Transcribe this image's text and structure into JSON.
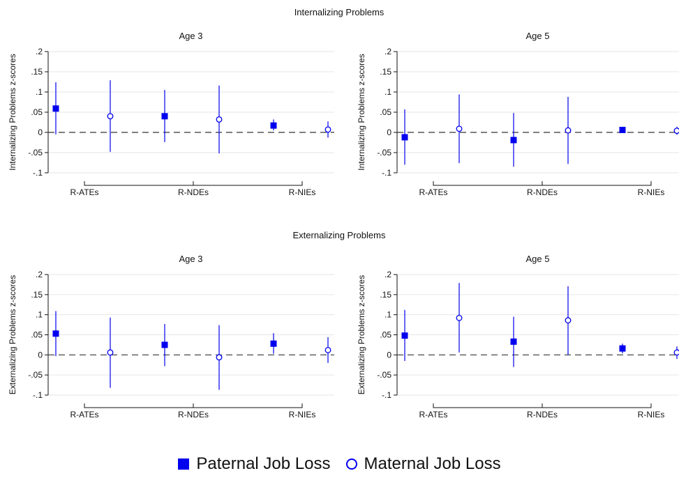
{
  "chart_data": [
    {
      "type": "scatter",
      "group_title": "Internalizing Problems",
      "title": "Age 3",
      "ylabel": "Internalizing Problems z-scores",
      "ylim": [
        -0.1,
        0.2
      ],
      "yticks": [
        ".2",
        ".15",
        ".1",
        ".05",
        "0",
        "-.05",
        "-.1"
      ],
      "categories": [
        "R-ATEs",
        "R-NDEs",
        "R-NIEs"
      ],
      "series": [
        {
          "name": "Paternal Job Loss",
          "marker": "filled-square",
          "values": [
            0.059,
            0.04,
            0.017
          ],
          "ci_low": [
            -0.005,
            -0.024,
            0.005
          ],
          "ci_high": [
            0.124,
            0.105,
            0.032
          ]
        },
        {
          "name": "Maternal Job Loss",
          "marker": "hollow-circle",
          "values": [
            0.04,
            0.032,
            0.007
          ],
          "ci_low": [
            -0.048,
            -0.052,
            -0.013
          ],
          "ci_high": [
            0.129,
            0.116,
            0.027
          ]
        }
      ]
    },
    {
      "type": "scatter",
      "group_title": "Internalizing Problems",
      "title": "Age 5",
      "ylabel": "Internalizing Problems z-scores",
      "ylim": [
        -0.1,
        0.2
      ],
      "yticks": [
        ".2",
        ".15",
        ".1",
        ".05",
        "0",
        "-.05",
        "-.1"
      ],
      "categories": [
        "R-ATEs",
        "R-NDEs",
        "R-NIEs"
      ],
      "series": [
        {
          "name": "Paternal Job Loss",
          "marker": "filled-square",
          "values": [
            -0.012,
            -0.019,
            0.006
          ],
          "ci_low": [
            -0.08,
            -0.085,
            0.0
          ],
          "ci_high": [
            0.057,
            0.048,
            0.012
          ]
        },
        {
          "name": "Maternal Job Loss",
          "marker": "hollow-circle",
          "values": [
            0.009,
            0.005,
            0.004
          ],
          "ci_low": [
            -0.076,
            -0.078,
            -0.006
          ],
          "ci_high": [
            0.094,
            0.088,
            0.014
          ]
        }
      ]
    },
    {
      "type": "scatter",
      "group_title": "Externalizing Problems",
      "title": "Age 3",
      "ylabel": "Externalizing Problems z-scores",
      "ylim": [
        -0.1,
        0.2
      ],
      "yticks": [
        ".2",
        ".15",
        ".1",
        ".05",
        "0",
        "-.05",
        "-.1"
      ],
      "categories": [
        "R-ATEs",
        "R-NDEs",
        "R-NIEs"
      ],
      "series": [
        {
          "name": "Paternal Job Loss",
          "marker": "filled-square",
          "values": [
            0.053,
            0.025,
            0.028
          ],
          "ci_low": [
            -0.003,
            -0.028,
            0.003
          ],
          "ci_high": [
            0.109,
            0.077,
            0.054
          ]
        },
        {
          "name": "Maternal Job Loss",
          "marker": "hollow-circle",
          "values": [
            0.006,
            -0.006,
            0.012
          ],
          "ci_low": [
            -0.082,
            -0.087,
            -0.02
          ],
          "ci_high": [
            0.093,
            0.074,
            0.044
          ]
        }
      ]
    },
    {
      "type": "scatter",
      "group_title": "Externalizing Problems",
      "title": "Age 5",
      "ylabel": "Externalizing Problems z-scores",
      "ylim": [
        -0.1,
        0.2
      ],
      "yticks": [
        ".2",
        ".15",
        ".1",
        ".05",
        "0",
        "-.05",
        "-.1"
      ],
      "categories": [
        "R-ATEs",
        "R-NDEs",
        "R-NIEs"
      ],
      "series": [
        {
          "name": "Paternal Job Loss",
          "marker": "filled-square",
          "values": [
            0.048,
            0.033,
            0.016
          ],
          "ci_low": [
            -0.015,
            -0.03,
            0.004
          ],
          "ci_high": [
            0.112,
            0.095,
            0.028
          ]
        },
        {
          "name": "Maternal Job Loss",
          "marker": "hollow-circle",
          "values": [
            0.092,
            0.086,
            0.006
          ],
          "ci_low": [
            0.006,
            0.0,
            -0.01
          ],
          "ci_high": [
            0.179,
            0.171,
            0.021
          ]
        }
      ]
    }
  ],
  "legend": {
    "paternal_label": "Paternal Job Loss",
    "maternal_label": "Maternal Job Loss"
  },
  "colors": {
    "marker": "#0000ee",
    "grid": "#e6e6e6",
    "axis": "#111111",
    "reference_line": "#333333"
  }
}
